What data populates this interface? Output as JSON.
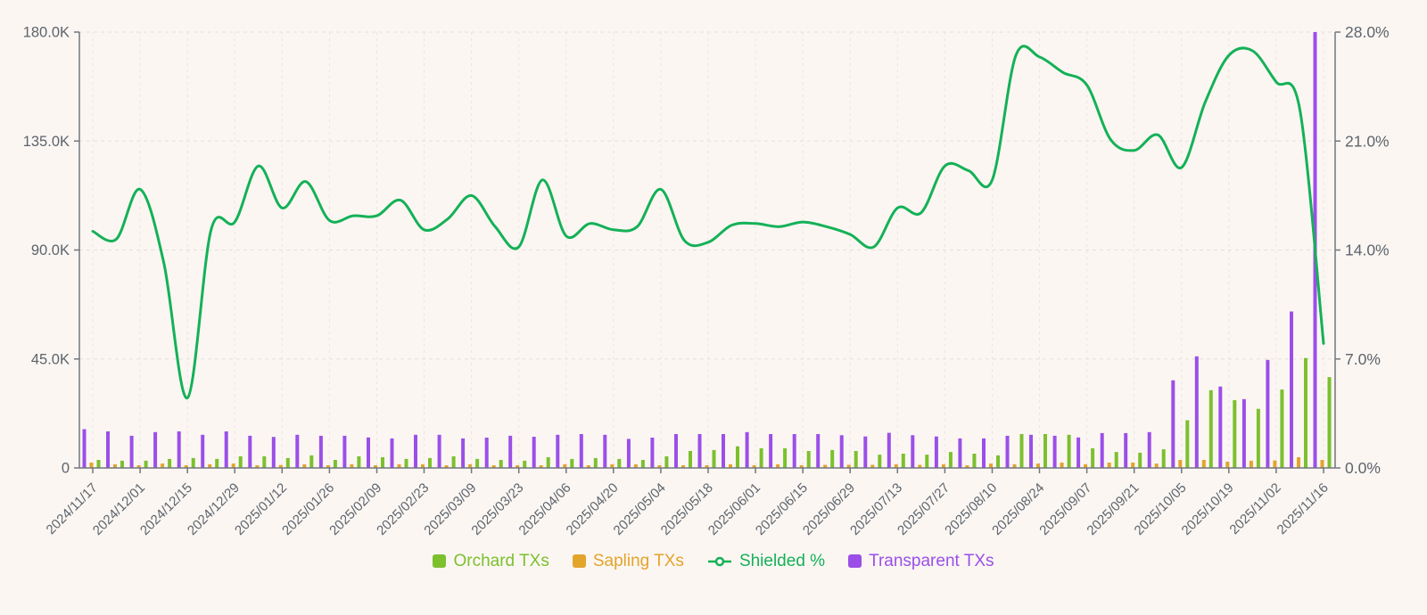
{
  "chart_data": {
    "type": "combo-bar-line",
    "categories": [
      "2024/11/17",
      "2024/11/24",
      "2024/12/01",
      "2024/12/08",
      "2024/12/15",
      "2024/12/22",
      "2024/12/29",
      "2025/01/05",
      "2025/01/12",
      "2025/01/19",
      "2025/01/26",
      "2025/02/02",
      "2025/02/09",
      "2025/02/16",
      "2025/02/23",
      "2025/03/02",
      "2025/03/09",
      "2025/03/16",
      "2025/03/23",
      "2025/03/30",
      "2025/04/06",
      "2025/04/13",
      "2025/04/20",
      "2025/04/27",
      "2025/05/04",
      "2025/05/11",
      "2025/05/18",
      "2025/05/25",
      "2025/06/01",
      "2025/06/08",
      "2025/06/15",
      "2025/06/22",
      "2025/06/29",
      "2025/07/06",
      "2025/07/13",
      "2025/07/20",
      "2025/07/27",
      "2025/08/03",
      "2025/08/10",
      "2025/08/17",
      "2025/08/24",
      "2025/08/31",
      "2025/09/07",
      "2025/09/14",
      "2025/09/21",
      "2025/09/28",
      "2025/10/05",
      "2025/10/12",
      "2025/10/19",
      "2025/10/26",
      "2025/11/02",
      "2025/11/09",
      "2025/11/16"
    ],
    "x_axis": {
      "tick_labels": [
        "2024/11/17",
        "2024/12/01",
        "2024/12/15",
        "2024/12/29",
        "2025/01/12",
        "2025/01/26",
        "2025/02/09",
        "2025/02/23",
        "2025/03/09",
        "2025/03/23",
        "2025/04/06",
        "2025/04/20",
        "2025/05/04",
        "2025/05/18",
        "2025/06/01",
        "2025/06/15",
        "2025/06/29",
        "2025/07/13",
        "2025/07/27",
        "2025/08/10",
        "2025/08/24",
        "2025/09/07",
        "2025/09/21",
        "2025/10/05",
        "2025/10/19",
        "2025/11/02",
        "2025/11/16"
      ],
      "label_every_n_categories": 2,
      "label_rotation_deg": 45
    },
    "y_axis_left": {
      "tick_labels": [
        "0",
        "45.0K",
        "90.0K",
        "135.0K",
        "180.0K"
      ],
      "min": 0,
      "max": 180000,
      "unit": "transactions"
    },
    "y_axis_right": {
      "tick_labels": [
        "0.0%",
        "7.0%",
        "14.0%",
        "21.0%",
        "28.0%"
      ],
      "min": 0,
      "max": 28,
      "unit": "percent"
    },
    "grid": {
      "horizontal": true,
      "vertical": true,
      "style": "dashed"
    },
    "bar_order_left_to_right": [
      "Transparent TXs",
      "Sapling TXs",
      "Orchard TXs"
    ],
    "series": [
      {
        "name": "Orchard TXs",
        "type": "bar",
        "axis": "left",
        "color": "#7cc02e",
        "unit": "K",
        "values": [
          3.3,
          3.0,
          3.0,
          3.7,
          4.1,
          3.7,
          4.8,
          4.8,
          4.1,
          5.2,
          3.3,
          4.8,
          4.4,
          3.7,
          4.1,
          4.8,
          3.7,
          3.3,
          3.0,
          4.4,
          3.7,
          4.1,
          3.7,
          3.3,
          4.8,
          7.0,
          7.4,
          8.9,
          8.1,
          8.1,
          7.0,
          7.4,
          7.0,
          5.5,
          5.9,
          5.5,
          6.6,
          5.9,
          5.2,
          14.0,
          14.0,
          13.7,
          8.1,
          6.6,
          6.3,
          7.7,
          19.7,
          32.1,
          28.0,
          24.4,
          32.4,
          45.4,
          37.5
        ]
      },
      {
        "name": "Sapling TXs",
        "type": "bar",
        "axis": "left",
        "color": "#e3a42c",
        "unit": "K",
        "values": [
          2.2,
          1.5,
          1.1,
          1.8,
          1.1,
          1.5,
          1.8,
          1.1,
          1.2,
          1.5,
          1.1,
          1.5,
          1.1,
          1.5,
          1.5,
          1.1,
          1.5,
          1.1,
          1.1,
          1.1,
          1.5,
          1.1,
          1.5,
          1.5,
          1.1,
          1.1,
          1.1,
          1.5,
          1.1,
          1.5,
          1.1,
          1.3,
          1.3,
          1.3,
          1.5,
          1.3,
          1.5,
          1.1,
          1.8,
          1.5,
          1.8,
          2.2,
          1.5,
          2.2,
          2.2,
          1.8,
          3.3,
          3.3,
          2.6,
          3.0,
          3.1,
          4.4,
          3.3
        ]
      },
      {
        "name": "Shielded %",
        "type": "line",
        "axis": "right",
        "color": "#14b157",
        "unit": "%",
        "values": [
          15.2,
          14.7,
          17.9,
          13.2,
          4.5,
          15.3,
          15.8,
          19.4,
          16.7,
          18.4,
          15.9,
          16.2,
          16.2,
          17.2,
          15.3,
          16.0,
          17.5,
          15.5,
          14.2,
          18.5,
          14.9,
          15.7,
          15.3,
          15.5,
          17.9,
          14.6,
          14.5,
          15.6,
          15.7,
          15.5,
          15.8,
          15.5,
          15.0,
          14.2,
          16.7,
          16.4,
          19.4,
          19.1,
          18.5,
          26.5,
          26.4,
          25.4,
          24.6,
          21.1,
          20.4,
          21.4,
          19.3,
          23.5,
          26.5,
          26.8,
          24.8,
          23.0,
          8.0
        ]
      },
      {
        "name": "Transparent TXs",
        "type": "bar",
        "axis": "left",
        "color": "#9b4fe8",
        "unit": "K",
        "values": [
          16.0,
          15.1,
          13.3,
          14.8,
          15.1,
          13.7,
          15.1,
          13.3,
          12.8,
          13.7,
          13.3,
          13.3,
          12.6,
          12.2,
          13.7,
          13.7,
          12.2,
          12.5,
          13.3,
          12.9,
          13.7,
          14.0,
          13.7,
          12.0,
          12.5,
          14.0,
          14.0,
          14.0,
          14.8,
          14.0,
          14.0,
          14.0,
          13.5,
          13.0,
          14.5,
          13.5,
          13.0,
          12.2,
          12.2,
          13.3,
          13.7,
          13.3,
          12.6,
          14.4,
          14.4,
          14.8,
          36.2,
          46.1,
          33.6,
          28.4,
          44.6,
          64.6,
          180.0
        ]
      }
    ],
    "legend": {
      "position": "bottom-center",
      "items": [
        {
          "label": "Orchard TXs",
          "icon": "square",
          "color": "#7cc02e"
        },
        {
          "label": "Sapling TXs",
          "icon": "square",
          "color": "#e3a42c"
        },
        {
          "label": "Shielded %",
          "icon": "line-circle",
          "color": "#14b157"
        },
        {
          "label": "Transparent TXs",
          "icon": "square",
          "color": "#9b4fe8"
        }
      ]
    },
    "colors": {
      "background": "#fbf6f2",
      "grid_line": "#e6e0da",
      "axis_line": "#71767e",
      "tick_label": "#5d646d"
    }
  }
}
